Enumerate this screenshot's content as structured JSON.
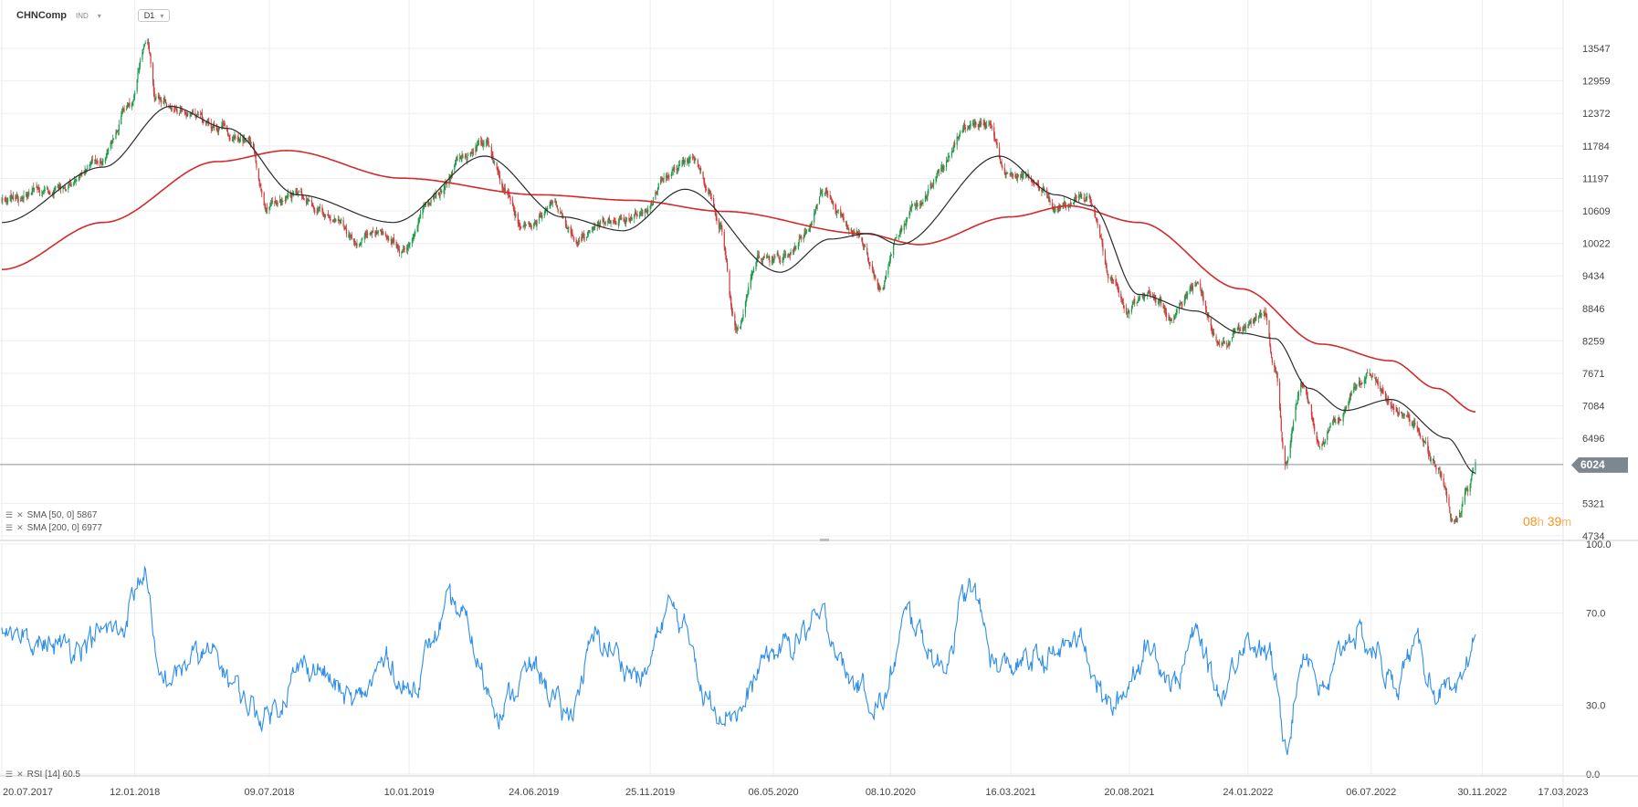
{
  "header": {
    "symbol": "CHNComp",
    "type": "IND",
    "timeframe": "D1"
  },
  "indicators": {
    "sma50": {
      "label": "SMA [50, 0] 5867",
      "color": "#2b2b2b"
    },
    "sma200": {
      "label": "SMA [200, 0] 6977",
      "color": "#d42a2a"
    },
    "rsi": {
      "label": "RSI [14] 60.5",
      "color": "#2f8fe8"
    }
  },
  "last_price": "6024",
  "timer": {
    "hours": "08",
    "h": "h",
    "minutes": "39",
    "m": "m"
  },
  "colors": {
    "up": "#1f9a4a",
    "down": "#d03a3a",
    "grid": "#eeeeee",
    "price_line": "#8a9299"
  },
  "chart_data": [
    {
      "type": "candlestick",
      "x_tick_labels": [
        "20.07.2017",
        "12.01.2018",
        "09.07.2018",
        "10.01.2019",
        "24.06.2019",
        "25.11.2019",
        "06.05.2020",
        "08.10.2020",
        "16.03.2021",
        "20.08.2021",
        "24.01.2022",
        "06.07.2022",
        "30.11.2022",
        "17.03.2023"
      ],
      "y_tick_labels": [
        "13547",
        "12959",
        "12372",
        "11784",
        "11197",
        "10609",
        "10022",
        "9434",
        "8846",
        "8259",
        "7671",
        "7084",
        "6496",
        "5321",
        "4734"
      ],
      "ylim": [
        4600,
        14000
      ],
      "price_anchors": [
        {
          "date": "2017-07-20",
          "close": 10800
        },
        {
          "date": "2017-10-01",
          "close": 11000
        },
        {
          "date": "2017-12-01",
          "close": 11600
        },
        {
          "date": "2018-01-05",
          "close": 12500
        },
        {
          "date": "2018-01-29",
          "close": 13700
        },
        {
          "date": "2018-02-09",
          "close": 12700
        },
        {
          "date": "2018-03-15",
          "close": 12400
        },
        {
          "date": "2018-05-01",
          "close": 12100
        },
        {
          "date": "2018-06-15",
          "close": 11800
        },
        {
          "date": "2018-07-05",
          "close": 10700
        },
        {
          "date": "2018-08-15",
          "close": 10900
        },
        {
          "date": "2018-10-01",
          "close": 10500
        },
        {
          "date": "2018-10-30",
          "close": 10100
        },
        {
          "date": "2018-12-01",
          "close": 10300
        },
        {
          "date": "2019-01-04",
          "close": 9900
        },
        {
          "date": "2019-02-15",
          "close": 10900
        },
        {
          "date": "2019-03-20",
          "close": 11500
        },
        {
          "date": "2019-04-20",
          "close": 11900
        },
        {
          "date": "2019-05-15",
          "close": 11000
        },
        {
          "date": "2019-06-10",
          "close": 10300
        },
        {
          "date": "2019-07-20",
          "close": 10700
        },
        {
          "date": "2019-08-20",
          "close": 10100
        },
        {
          "date": "2019-09-20",
          "close": 10500
        },
        {
          "date": "2019-10-20",
          "close": 10400
        },
        {
          "date": "2019-11-20",
          "close": 10700
        },
        {
          "date": "2019-12-20",
          "close": 11400
        },
        {
          "date": "2020-01-20",
          "close": 11500
        },
        {
          "date": "2020-02-10",
          "close": 11000
        },
        {
          "date": "2020-02-25",
          "close": 10400
        },
        {
          "date": "2020-03-19",
          "close": 8400
        },
        {
          "date": "2020-04-15",
          "close": 9700
        },
        {
          "date": "2020-05-20",
          "close": 9800
        },
        {
          "date": "2020-06-20",
          "close": 10200
        },
        {
          "date": "2020-07-10",
          "close": 10900
        },
        {
          "date": "2020-08-20",
          "close": 10300
        },
        {
          "date": "2020-09-25",
          "close": 9300
        },
        {
          "date": "2020-10-20",
          "close": 10300
        },
        {
          "date": "2020-11-15",
          "close": 10700
        },
        {
          "date": "2020-12-15",
          "close": 11400
        },
        {
          "date": "2021-01-15",
          "close": 12100
        },
        {
          "date": "2021-02-17",
          "close": 12200
        },
        {
          "date": "2021-03-10",
          "close": 11300
        },
        {
          "date": "2021-04-15",
          "close": 11200
        },
        {
          "date": "2021-05-20",
          "close": 10700
        },
        {
          "date": "2021-06-25",
          "close": 10800
        },
        {
          "date": "2021-07-27",
          "close": 9400
        },
        {
          "date": "2021-08-20",
          "close": 8900
        },
        {
          "date": "2021-09-15",
          "close": 9100
        },
        {
          "date": "2021-10-15",
          "close": 8700
        },
        {
          "date": "2021-11-15",
          "close": 9300
        },
        {
          "date": "2021-12-20",
          "close": 8200
        },
        {
          "date": "2022-01-15",
          "close": 8500
        },
        {
          "date": "2022-02-15",
          "close": 8700
        },
        {
          "date": "2022-03-01",
          "close": 7800
        },
        {
          "date": "2022-03-15",
          "close": 6000
        },
        {
          "date": "2022-04-05",
          "close": 7400
        },
        {
          "date": "2022-04-28",
          "close": 6400
        },
        {
          "date": "2022-05-20",
          "close": 6900
        },
        {
          "date": "2022-06-20",
          "close": 7500
        },
        {
          "date": "2022-07-05",
          "close": 7700
        },
        {
          "date": "2022-08-01",
          "close": 7100
        },
        {
          "date": "2022-09-01",
          "close": 6700
        },
        {
          "date": "2022-10-01",
          "close": 6000
        },
        {
          "date": "2022-10-24",
          "close": 5000
        },
        {
          "date": "2022-11-10",
          "close": 5500
        },
        {
          "date": "2022-11-21",
          "close": 6024
        }
      ],
      "sma50_anchors": [
        {
          "date": "2017-07-20",
          "value": 10400
        },
        {
          "date": "2017-12-01",
          "value": 11400
        },
        {
          "date": "2018-02-28",
          "value": 12500
        },
        {
          "date": "2018-05-15",
          "value": 12100
        },
        {
          "date": "2018-08-15",
          "value": 10900
        },
        {
          "date": "2018-12-20",
          "value": 10400
        },
        {
          "date": "2019-04-20",
          "value": 11600
        },
        {
          "date": "2019-08-01",
          "value": 10500
        },
        {
          "date": "2019-10-20",
          "value": 10250
        },
        {
          "date": "2020-01-10",
          "value": 11000
        },
        {
          "date": "2020-05-15",
          "value": 9500
        },
        {
          "date": "2020-07-20",
          "value": 10100
        },
        {
          "date": "2020-09-10",
          "value": 10200
        },
        {
          "date": "2020-10-20",
          "value": 10000
        },
        {
          "date": "2021-03-01",
          "value": 11600
        },
        {
          "date": "2021-05-15",
          "value": 10900
        },
        {
          "date": "2021-07-01",
          "value": 10700
        },
        {
          "date": "2021-09-01",
          "value": 9100
        },
        {
          "date": "2021-11-15",
          "value": 8800
        },
        {
          "date": "2022-01-15",
          "value": 8400
        },
        {
          "date": "2022-03-01",
          "value": 8300
        },
        {
          "date": "2022-04-15",
          "value": 7400
        },
        {
          "date": "2022-06-01",
          "value": 7000
        },
        {
          "date": "2022-08-01",
          "value": 7200
        },
        {
          "date": "2022-10-15",
          "value": 6500
        },
        {
          "date": "2022-11-21",
          "value": 5867
        }
      ],
      "sma200_anchors": [
        {
          "date": "2017-07-20",
          "value": 9550
        },
        {
          "date": "2017-12-01",
          "value": 10400
        },
        {
          "date": "2018-05-01",
          "value": 11500
        },
        {
          "date": "2018-08-01",
          "value": 11700
        },
        {
          "date": "2019-01-01",
          "value": 11200
        },
        {
          "date": "2019-07-01",
          "value": 10900
        },
        {
          "date": "2019-11-01",
          "value": 10800
        },
        {
          "date": "2020-03-01",
          "value": 10600
        },
        {
          "date": "2020-09-01",
          "value": 10200
        },
        {
          "date": "2020-11-15",
          "value": 10000
        },
        {
          "date": "2021-03-15",
          "value": 10500
        },
        {
          "date": "2021-06-01",
          "value": 10700
        },
        {
          "date": "2021-09-01",
          "value": 10400
        },
        {
          "date": "2022-01-15",
          "value": 9200
        },
        {
          "date": "2022-05-01",
          "value": 8200
        },
        {
          "date": "2022-08-01",
          "value": 7900
        },
        {
          "date": "2022-10-01",
          "value": 7400
        },
        {
          "date": "2022-11-21",
          "value": 6977
        }
      ]
    },
    {
      "type": "line",
      "title": "RSI [14] 60.5",
      "ylim": [
        0,
        100
      ],
      "y_tick_labels": [
        "100.0",
        "70.0",
        "30.0",
        "0.0"
      ],
      "rsi_anchors": [
        {
          "date": "2017-07-20",
          "value": 66
        },
        {
          "date": "2017-10-01",
          "value": 55
        },
        {
          "date": "2017-12-20",
          "value": 62
        },
        {
          "date": "2018-01-26",
          "value": 88
        },
        {
          "date": "2018-02-12",
          "value": 40
        },
        {
          "date": "2018-04-15",
          "value": 52
        },
        {
          "date": "2018-07-01",
          "value": 26
        },
        {
          "date": "2018-09-01",
          "value": 48
        },
        {
          "date": "2018-10-30",
          "value": 31
        },
        {
          "date": "2018-12-15",
          "value": 50
        },
        {
          "date": "2019-01-04",
          "value": 36
        },
        {
          "date": "2019-03-10",
          "value": 72
        },
        {
          "date": "2019-05-10",
          "value": 30
        },
        {
          "date": "2019-06-25",
          "value": 46
        },
        {
          "date": "2019-08-05",
          "value": 25
        },
        {
          "date": "2019-09-15",
          "value": 58
        },
        {
          "date": "2019-11-15",
          "value": 42
        },
        {
          "date": "2019-12-20",
          "value": 72
        },
        {
          "date": "2020-01-20",
          "value": 58
        },
        {
          "date": "2020-02-05",
          "value": 32
        },
        {
          "date": "2020-03-23",
          "value": 28
        },
        {
          "date": "2020-05-01",
          "value": 52
        },
        {
          "date": "2020-07-10",
          "value": 66
        },
        {
          "date": "2020-08-20",
          "value": 40
        },
        {
          "date": "2020-09-25",
          "value": 30
        },
        {
          "date": "2020-11-01",
          "value": 68
        },
        {
          "date": "2020-12-15",
          "value": 48
        },
        {
          "date": "2021-01-20",
          "value": 80
        },
        {
          "date": "2021-03-01",
          "value": 46
        },
        {
          "date": "2021-05-01",
          "value": 50
        },
        {
          "date": "2021-06-15",
          "value": 59
        },
        {
          "date": "2021-07-27",
          "value": 28
        },
        {
          "date": "2021-09-15",
          "value": 55
        },
        {
          "date": "2021-10-20",
          "value": 40
        },
        {
          "date": "2021-11-15",
          "value": 60
        },
        {
          "date": "2021-12-20",
          "value": 35
        },
        {
          "date": "2022-01-20",
          "value": 60
        },
        {
          "date": "2022-02-20",
          "value": 52
        },
        {
          "date": "2022-03-15",
          "value": 17
        },
        {
          "date": "2022-04-10",
          "value": 55
        },
        {
          "date": "2022-05-05",
          "value": 35
        },
        {
          "date": "2022-06-10",
          "value": 62
        },
        {
          "date": "2022-07-10",
          "value": 54
        },
        {
          "date": "2022-08-05",
          "value": 38
        },
        {
          "date": "2022-09-01",
          "value": 55
        },
        {
          "date": "2022-10-05",
          "value": 36
        },
        {
          "date": "2022-10-25",
          "value": 30
        },
        {
          "date": "2022-11-21",
          "value": 60.5
        }
      ]
    }
  ]
}
